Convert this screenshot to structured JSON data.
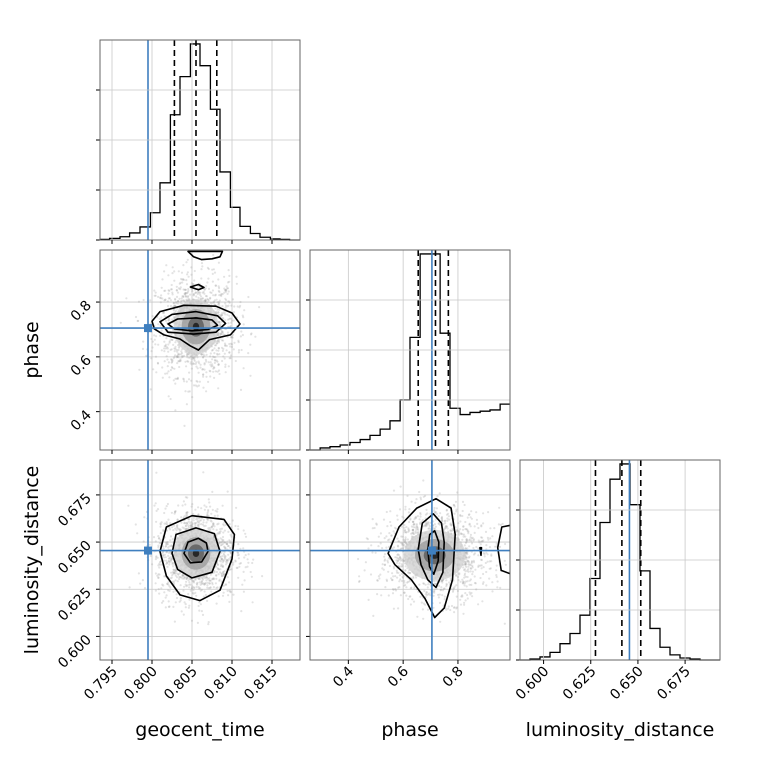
{
  "figure": {
    "parameters": [
      "geocent_time",
      "phase",
      "luminosity_distance"
    ],
    "injection_color": "#3f7fbf",
    "quantile_color": "#000000"
  },
  "chart_data": {
    "type": "corner",
    "grid": true,
    "parameters": [
      {
        "name": "geocent_time",
        "label": "geocent_time",
        "range": [
          0.7935,
          0.8185
        ],
        "ticks": [
          0.795,
          0.8,
          0.805,
          0.81,
          0.815
        ],
        "tick_labels": [
          "0.795",
          "0.800",
          "0.805",
          "0.810",
          "0.815"
        ],
        "injection": 0.7995,
        "quantiles": [
          0.8028,
          0.8055,
          0.8081
        ]
      },
      {
        "name": "phase",
        "label": "phase",
        "range": [
          0.26,
          0.99
        ],
        "ticks": [
          0.4,
          0.6,
          0.8
        ],
        "tick_labels": [
          "0.4",
          "0.6",
          "0.8"
        ],
        "injection": 0.705,
        "quantiles": [
          0.655,
          0.718,
          0.765
        ]
      },
      {
        "name": "luminosity_distance",
        "label": "luminosity_distance",
        "range": [
          0.5875,
          0.6935
        ],
        "ticks": [
          0.6,
          0.625,
          0.65,
          0.675
        ],
        "tick_labels": [
          "0.600",
          "0.625",
          "0.650",
          "0.675"
        ],
        "injection": 0.6455,
        "quantiles": [
          0.6275,
          0.6415,
          0.6515
        ]
      }
    ],
    "histograms": [
      {
        "param": "geocent_time",
        "bins": [
          0.7935,
          0.7947,
          0.796,
          0.7972,
          0.7985,
          0.7998,
          0.801,
          0.8023,
          0.8035,
          0.8048,
          0.806,
          0.8073,
          0.8085,
          0.8098,
          0.811,
          0.8123,
          0.8135,
          0.8148,
          0.816,
          0.8172,
          0.8185
        ],
        "counts": [
          1,
          3,
          6,
          13,
          24,
          50,
          105,
          230,
          300,
          360,
          320,
          240,
          125,
          60,
          25,
          12,
          5,
          2,
          1,
          0
        ],
        "ymax": 360
      },
      {
        "param": "phase",
        "bins": [
          0.26,
          0.297,
          0.333,
          0.37,
          0.406,
          0.443,
          0.479,
          0.516,
          0.552,
          0.589,
          0.625,
          0.662,
          0.698,
          0.735,
          0.771,
          0.808,
          0.844,
          0.881,
          0.917,
          0.954,
          0.99
        ],
        "counts": [
          0,
          5,
          8,
          12,
          18,
          25,
          35,
          50,
          70,
          120,
          270,
          470,
          470,
          280,
          100,
          85,
          90,
          93,
          96,
          110
        ],
        "ymax": 470
      },
      {
        "param": "luminosity_distance",
        "bins": [
          0.5875,
          0.5928,
          0.5981,
          0.6034,
          0.6087,
          0.614,
          0.6193,
          0.6246,
          0.6299,
          0.6352,
          0.6405,
          0.6458,
          0.6511,
          0.6564,
          0.6617,
          0.667,
          0.6723,
          0.6776,
          0.6829,
          0.6882,
          0.6935
        ],
        "counts": [
          0,
          2,
          6,
          15,
          32,
          52,
          88,
          160,
          270,
          355,
          385,
          305,
          175,
          62,
          25,
          10,
          4,
          2,
          0,
          0
        ],
        "ymax": 385
      }
    ],
    "pairs": [
      {
        "x": "geocent_time",
        "y": "phase",
        "contours": [
          [
            [
              0.802,
              0.72
            ],
            [
              0.8032,
              0.738
            ],
            [
              0.8055,
              0.742
            ],
            [
              0.8075,
              0.735
            ],
            [
              0.8082,
              0.715
            ],
            [
              0.807,
              0.7
            ],
            [
              0.805,
              0.695
            ],
            [
              0.8028,
              0.702
            ]
          ],
          [
            [
              0.801,
              0.728
            ],
            [
              0.8025,
              0.755
            ],
            [
              0.8055,
              0.765
            ],
            [
              0.8082,
              0.75
            ],
            [
              0.8092,
              0.722
            ],
            [
              0.808,
              0.69
            ],
            [
              0.8052,
              0.683
            ],
            [
              0.802,
              0.69
            ]
          ],
          [
            [
              0.8,
              0.73
            ],
            [
              0.801,
              0.765
            ],
            [
              0.804,
              0.788
            ],
            [
              0.808,
              0.785
            ],
            [
              0.81,
              0.76
            ],
            [
              0.811,
              0.72
            ],
            [
              0.8098,
              0.68
            ],
            [
              0.8072,
              0.663
            ],
            [
              0.8058,
              0.625
            ],
            [
              0.8048,
              0.64
            ],
            [
              0.8035,
              0.665
            ],
            [
              0.8015,
              0.68
            ],
            [
              0.8003,
              0.702
            ]
          ],
          [
            [
              0.8045,
              0.985
            ],
            [
              0.8052,
              0.965
            ],
            [
              0.8062,
              0.955
            ],
            [
              0.8075,
              0.958
            ],
            [
              0.8085,
              0.965
            ],
            [
              0.8088,
              0.985
            ]
          ],
          [
            [
              0.8048,
              0.855
            ],
            [
              0.8058,
              0.845
            ],
            [
              0.8065,
              0.853
            ],
            [
              0.8058,
              0.864
            ]
          ]
        ],
        "scatter_center": [
          0.8055,
          0.71
        ],
        "scatter_spread": [
          0.0025,
          0.09
        ]
      },
      {
        "x": "geocent_time",
        "y": "luminosity_distance",
        "contours": [
          [
            [
              0.804,
              0.644
            ],
            [
              0.8045,
              0.65
            ],
            [
              0.8058,
              0.652
            ],
            [
              0.8068,
              0.6495
            ],
            [
              0.807,
              0.645
            ],
            [
              0.8062,
              0.6395
            ],
            [
              0.8048,
              0.639
            ]
          ],
          [
            [
              0.8025,
              0.644
            ],
            [
              0.803,
              0.654
            ],
            [
              0.8055,
              0.6575
            ],
            [
              0.8078,
              0.6545
            ],
            [
              0.8085,
              0.645
            ],
            [
              0.8075,
              0.634
            ],
            [
              0.805,
              0.631
            ],
            [
              0.8032,
              0.6355
            ]
          ],
          [
            [
              0.801,
              0.645
            ],
            [
              0.8018,
              0.658
            ],
            [
              0.805,
              0.664
            ],
            [
              0.809,
              0.662
            ],
            [
              0.8103,
              0.654
            ],
            [
              0.81,
              0.641
            ],
            [
              0.8085,
              0.6245
            ],
            [
              0.806,
              0.619
            ],
            [
              0.8035,
              0.622
            ],
            [
              0.8018,
              0.632
            ]
          ]
        ],
        "scatter_center": [
          0.8055,
          0.644
        ],
        "scatter_spread": [
          0.0025,
          0.012
        ]
      },
      {
        "x": "phase",
        "y": "luminosity_distance",
        "contours": [
          [
            [
              0.69,
              0.646
            ],
            [
              0.697,
              0.654
            ],
            [
              0.715,
              0.656
            ],
            [
              0.73,
              0.65
            ],
            [
              0.728,
              0.64
            ],
            [
              0.712,
              0.633
            ],
            [
              0.696,
              0.637
            ]
          ],
          [
            [
              0.655,
              0.646
            ],
            [
              0.67,
              0.66
            ],
            [
              0.71,
              0.665
            ],
            [
              0.74,
              0.66
            ],
            [
              0.75,
              0.65
            ],
            [
              0.745,
              0.634
            ],
            [
              0.72,
              0.626
            ],
            [
              0.69,
              0.63
            ],
            [
              0.665,
              0.638
            ]
          ],
          [
            [
              0.545,
              0.644
            ],
            [
              0.585,
              0.658
            ],
            [
              0.65,
              0.668
            ],
            [
              0.72,
              0.673
            ],
            [
              0.775,
              0.668
            ],
            [
              0.79,
              0.654
            ],
            [
              0.78,
              0.63
            ],
            [
              0.75,
              0.615
            ],
            [
              0.715,
              0.61
            ],
            [
              0.68,
              0.62
            ],
            [
              0.63,
              0.63
            ],
            [
              0.57,
              0.638
            ]
          ],
          [
            [
              0.995,
              0.659
            ],
            [
              0.96,
              0.658
            ],
            [
              0.945,
              0.647
            ],
            [
              0.958,
              0.635
            ],
            [
              0.995,
              0.633
            ]
          ],
          [
            [
              0.88,
              0.647
            ],
            [
              0.884,
              0.643
            ],
            [
              0.886,
              0.647
            ]
          ]
        ],
        "scatter_center": [
          0.715,
          0.643
        ],
        "scatter_spread": [
          0.1,
          0.012
        ]
      }
    ]
  }
}
